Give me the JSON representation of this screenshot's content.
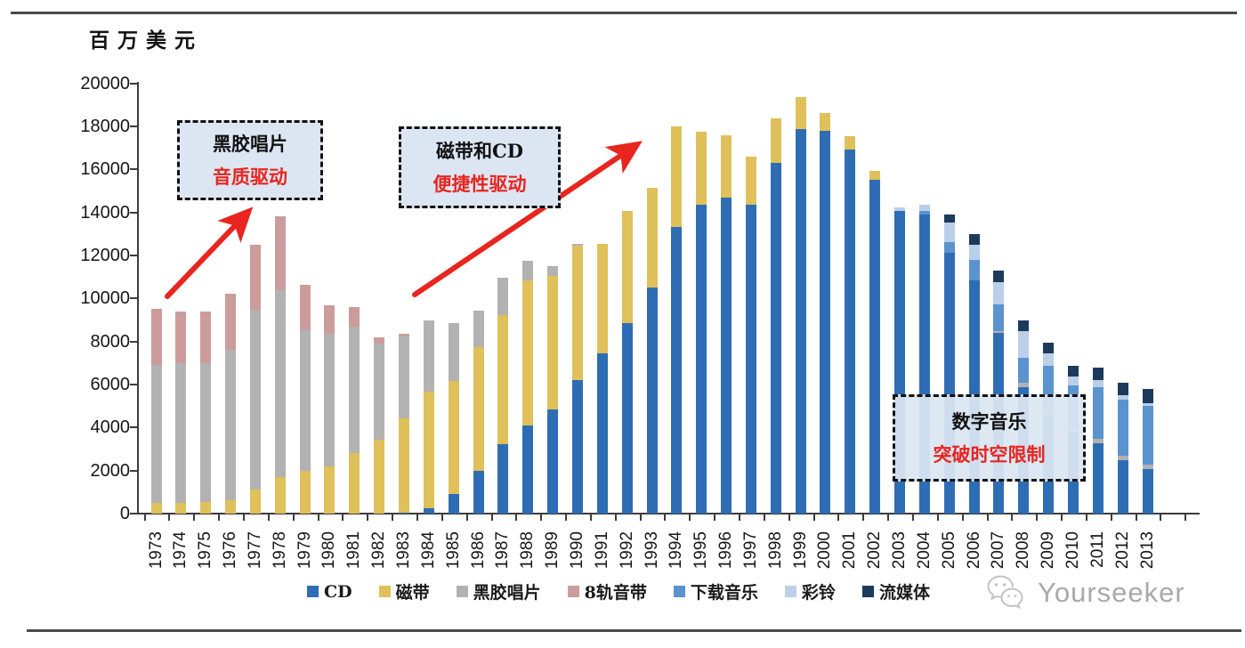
{
  "header": {
    "unit_label": "百万美元"
  },
  "chart_data": {
    "type": "bar",
    "stacked": true,
    "title": "",
    "ylabel": "百万美元",
    "xlabel": "",
    "ylim": [
      0,
      20000
    ],
    "ytick_step": 2000,
    "grid": false,
    "legend_position": "bottom",
    "categories": [
      "1973",
      "1974",
      "1975",
      "1976",
      "1977",
      "1978",
      "1979",
      "1980",
      "1981",
      "1982",
      "1983",
      "1984",
      "1985",
      "1986",
      "1987",
      "1988",
      "1989",
      "1990",
      "1991",
      "1992",
      "1993",
      "1994",
      "1995",
      "1996",
      "1997",
      "1998",
      "1999",
      "2000",
      "2001",
      "2002",
      "2003",
      "2004",
      "2005",
      "2006",
      "2007",
      "2008",
      "2009",
      "2010",
      "2011",
      "2012",
      "2013"
    ],
    "series": [
      {
        "name": "CD",
        "color": "#2E6DB4",
        "values": [
          0,
          0,
          0,
          0,
          0,
          0,
          0,
          0,
          0,
          0,
          50,
          250,
          910,
          1970,
          3210,
          4080,
          4830,
          6200,
          7440,
          8840,
          10500,
          13310,
          14340,
          14670,
          14340,
          16280,
          17850,
          17770,
          16900,
          15510,
          14080,
          13880,
          12100,
          10830,
          8380,
          5870,
          4580,
          3745,
          3250,
          2490,
          2080
        ]
      },
      {
        "name": "磁带",
        "color": "#DFC05A",
        "values": [
          500,
          500,
          550,
          600,
          1100,
          1700,
          2000,
          2200,
          2800,
          3450,
          4370,
          5410,
          5250,
          5750,
          6030,
          6750,
          6200,
          6250,
          5110,
          5220,
          4620,
          4680,
          3420,
          2900,
          2240,
          2070,
          1490,
          830,
          620,
          400,
          0,
          0,
          0,
          0,
          0,
          0,
          0,
          0,
          0,
          0,
          0
        ]
      },
      {
        "name": "黑胶唱片",
        "color": "#B2B2B2",
        "values": [
          6400,
          6500,
          6450,
          7000,
          8360,
          8700,
          6550,
          6150,
          5900,
          4440,
          3850,
          3310,
          2680,
          1730,
          1720,
          900,
          490,
          100,
          0,
          0,
          0,
          0,
          0,
          0,
          0,
          0,
          0,
          0,
          0,
          0,
          0,
          0,
          0,
          0,
          110,
          200,
          150,
          130,
          210,
          210,
          210
        ]
      },
      {
        "name": "8轨音带",
        "color": "#CB9C9B",
        "values": [
          2600,
          2400,
          2400,
          2600,
          3040,
          3400,
          2100,
          1320,
          890,
          290,
          70,
          0,
          0,
          0,
          0,
          0,
          0,
          0,
          0,
          0,
          0,
          0,
          0,
          0,
          0,
          0,
          0,
          0,
          0,
          0,
          0,
          0,
          0,
          0,
          0,
          0,
          0,
          0,
          0,
          0,
          0
        ]
      },
      {
        "name": "下载音乐",
        "color": "#5B93CE",
        "values": [
          0,
          0,
          0,
          0,
          0,
          0,
          0,
          0,
          0,
          0,
          0,
          0,
          0,
          0,
          0,
          0,
          0,
          0,
          0,
          0,
          0,
          0,
          0,
          0,
          0,
          0,
          0,
          0,
          0,
          0,
          0,
          200,
          520,
          960,
          1240,
          1170,
          2125,
          2100,
          2400,
          2600,
          2700
        ]
      },
      {
        "name": "彩铃",
        "color": "#BCCFE8",
        "values": [
          0,
          0,
          0,
          0,
          0,
          0,
          0,
          0,
          0,
          0,
          0,
          0,
          0,
          0,
          0,
          0,
          0,
          0,
          0,
          0,
          0,
          0,
          0,
          0,
          0,
          0,
          0,
          0,
          0,
          0,
          160,
          260,
          900,
          690,
          1030,
          1255,
          600,
          400,
          350,
          220,
          120
        ]
      },
      {
        "name": "流媒体",
        "color": "#1B3A5C",
        "values": [
          0,
          0,
          0,
          0,
          0,
          0,
          0,
          0,
          0,
          0,
          0,
          0,
          0,
          0,
          0,
          0,
          0,
          0,
          0,
          0,
          0,
          0,
          0,
          0,
          0,
          0,
          0,
          0,
          0,
          0,
          0,
          0,
          360,
          500,
          520,
          500,
          480,
          485,
          580,
          580,
          690
        ]
      }
    ]
  },
  "annotations": {
    "vinyl_box": {
      "line1": "黑胶唱片",
      "line2": "音质驱动"
    },
    "cassette_cd_box": {
      "line1": "磁带和CD",
      "line2": "便捷性驱动"
    },
    "digital_box": {
      "line1": "数字音乐",
      "line2": "突破时空限制"
    }
  },
  "watermark": {
    "text": "Yourseeker",
    "icon": "wechat-icon"
  }
}
